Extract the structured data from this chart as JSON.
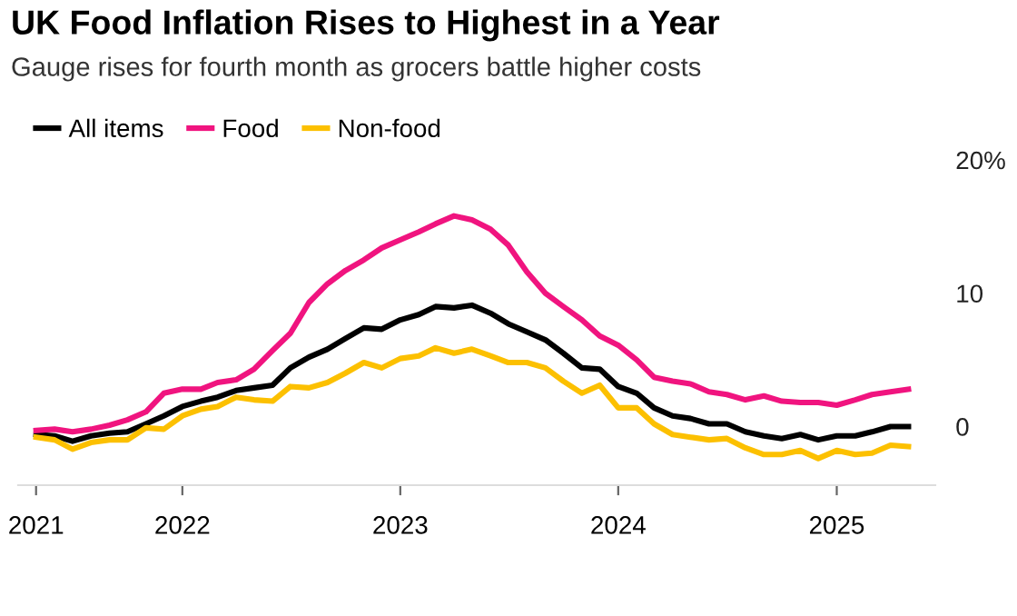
{
  "chart_data": {
    "type": "line",
    "title": "UK Food Inflation Rises to Highest in a Year",
    "subtitle": "Gauge rises for fourth month as grocers battle higher costs",
    "x": [
      "2021-05",
      "2021-06",
      "2021-07",
      "2021-08",
      "2021-09",
      "2021-10",
      "2021-11",
      "2021-12",
      "2022-01",
      "2022-02",
      "2022-03",
      "2022-04",
      "2022-05",
      "2022-06",
      "2022-07",
      "2022-08",
      "2022-09",
      "2022-10",
      "2022-11",
      "2022-12",
      "2023-01",
      "2023-02",
      "2023-03",
      "2023-04",
      "2023-05",
      "2023-06",
      "2023-07",
      "2023-08",
      "2023-09",
      "2023-10",
      "2023-11",
      "2023-12",
      "2024-01",
      "2024-02",
      "2024-03",
      "2024-04",
      "2024-05",
      "2024-06",
      "2024-07",
      "2024-08",
      "2024-09",
      "2024-10",
      "2024-11",
      "2024-12",
      "2025-01",
      "2025-02",
      "2025-03",
      "2025-04",
      "2025-05"
    ],
    "series": [
      {
        "name": "All items",
        "color": "#000000",
        "values": [
          -0.6,
          -0.7,
          -1.1,
          -0.7,
          -0.5,
          -0.4,
          0.2,
          0.8,
          1.5,
          1.9,
          2.2,
          2.7,
          2.9,
          3.1,
          4.4,
          5.2,
          5.8,
          6.6,
          7.4,
          7.3,
          8.0,
          8.4,
          9.0,
          8.9,
          9.1,
          8.5,
          7.7,
          7.1,
          6.5,
          5.5,
          4.4,
          4.3,
          3.0,
          2.5,
          1.4,
          0.8,
          0.6,
          0.2,
          0.2,
          -0.4,
          -0.7,
          -0.9,
          -0.6,
          -1.0,
          -0.7,
          -0.7,
          -0.4,
          0.0,
          0.0
        ]
      },
      {
        "name": "Food",
        "color": "#f0147f",
        "values": [
          -0.3,
          -0.2,
          -0.4,
          -0.2,
          0.1,
          0.5,
          1.1,
          2.5,
          2.8,
          2.8,
          3.3,
          3.5,
          4.3,
          5.7,
          7.0,
          9.3,
          10.7,
          11.7,
          12.5,
          13.4,
          14.0,
          14.6,
          15.2,
          15.8,
          15.5,
          14.8,
          13.6,
          11.6,
          10.0,
          9.0,
          8.0,
          6.8,
          6.1,
          5.0,
          3.7,
          3.4,
          3.2,
          2.6,
          2.4,
          2.0,
          2.3,
          1.9,
          1.8,
          1.8,
          1.6,
          2.0,
          2.4,
          2.6,
          2.8
        ]
      },
      {
        "name": "Non-food",
        "color": "#fcc000",
        "values": [
          -0.8,
          -1.0,
          -1.7,
          -1.2,
          -1.0,
          -1.0,
          -0.1,
          -0.2,
          0.8,
          1.3,
          1.5,
          2.2,
          2.0,
          1.9,
          3.0,
          2.9,
          3.3,
          4.0,
          4.8,
          4.4,
          5.1,
          5.3,
          5.9,
          5.5,
          5.8,
          5.3,
          4.8,
          4.8,
          4.4,
          3.4,
          2.5,
          3.1,
          1.4,
          1.4,
          0.2,
          -0.6,
          -0.8,
          -1.0,
          -0.9,
          -1.6,
          -2.1,
          -2.1,
          -1.8,
          -2.4,
          -1.8,
          -2.1,
          -2.0,
          -1.4,
          -1.5
        ]
      }
    ],
    "xlim": [
      "2021-04",
      "2025-06-15"
    ],
    "xticks": [
      {
        "value": "2021-05",
        "label": "2021"
      },
      {
        "value": "2022-01",
        "label": "2022"
      },
      {
        "value": "2023-01",
        "label": "2023"
      },
      {
        "value": "2024-01",
        "label": "2024"
      },
      {
        "value": "2025-01",
        "label": "2025"
      }
    ],
    "ylim": [
      -4.4,
      20
    ],
    "yticks": [
      0,
      10,
      {
        "value": 20,
        "label": "20%"
      }
    ],
    "grid": false,
    "legend": "top left",
    "line_style": "solid",
    "marker": "none"
  }
}
